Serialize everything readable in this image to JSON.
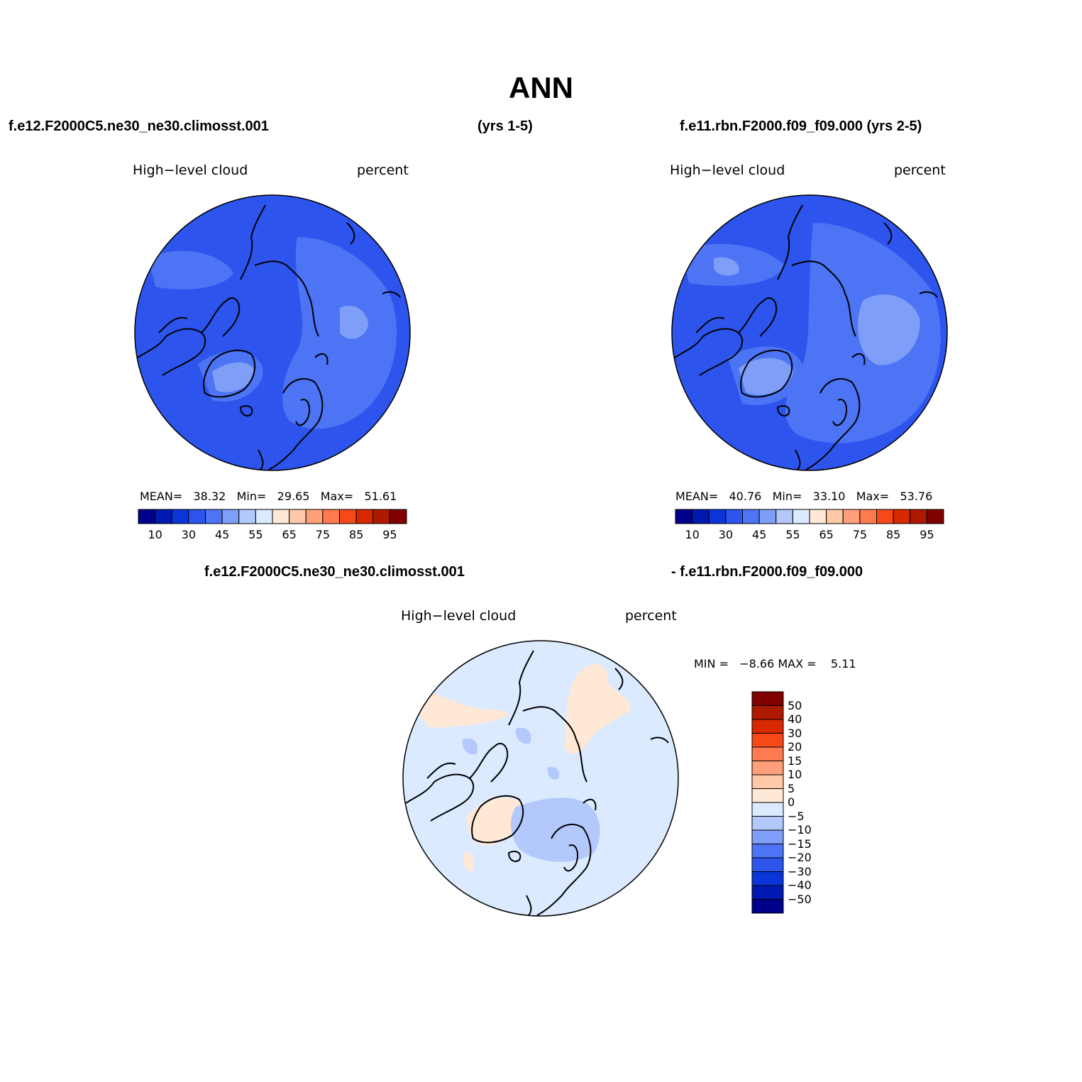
{
  "page_title": "ANN",
  "header": {
    "left_case": "f.e12.F2000C5.ne30_ne30.climosst.001",
    "left_years": "(yrs 1-5)",
    "right_case": "f.e11.rbn.F2000.f09_f09.000 (yrs 2-5)"
  },
  "panel_left": {
    "variable": "High−level cloud",
    "units": "percent",
    "stats": {
      "mean_label": "MEAN=",
      "mean": "38.32",
      "min_label": "Min=",
      "min": "29.65",
      "max_label": "Max=",
      "max": "51.61"
    }
  },
  "panel_right": {
    "variable": "High−level cloud",
    "units": "percent",
    "stats": {
      "mean_label": "MEAN=",
      "mean": "40.76",
      "min_label": "Min=",
      "min": "33.10",
      "max_label": "Max=",
      "max": "53.76"
    }
  },
  "panel_diff": {
    "case_a": "f.e12.F2000C5.ne30_ne30.climosst.001",
    "case_b": "- f.e11.rbn.F2000.f09_f09.000",
    "variable": "High−level cloud",
    "units": "percent",
    "stats": {
      "min_label": "MIN =",
      "min": "−8.66",
      "max_label": "MAX =",
      "max": "5.11"
    }
  },
  "colorbar_abs": {
    "colors": [
      "#00008c",
      "#0019b0",
      "#0a35d8",
      "#2d55ee",
      "#4c74f4",
      "#7f9ef8",
      "#b3c8fb",
      "#dceaff",
      "#ffe8d6",
      "#ffc8a8",
      "#ffa07a",
      "#ff7a4e",
      "#f54a18",
      "#d72800",
      "#ae1a00",
      "#800000"
    ],
    "labels": [
      "10",
      "30",
      "45",
      "55",
      "65",
      "75",
      "85",
      "95"
    ]
  },
  "colorbar_diff": {
    "colors_top_to_bottom": [
      "#800000",
      "#ae1a00",
      "#d72800",
      "#f54a18",
      "#ff7a4e",
      "#ffa07a",
      "#ffc8a8",
      "#ffe8d6",
      "#dceaff",
      "#b3c8fb",
      "#7f9ef8",
      "#4c74f4",
      "#2d55ee",
      "#0a35d8",
      "#0019b0",
      "#00008c"
    ],
    "labels": [
      "50",
      "40",
      "30",
      "20",
      "15",
      "10",
      "5",
      "0",
      "−5",
      "−10",
      "−15",
      "−20",
      "−30",
      "−40",
      "−50"
    ]
  },
  "map_colors": {
    "left_base": "#2d55ee",
    "left_patch": "#4c74f4",
    "left_light": "#7f9ef8",
    "right_base": "#2d55ee",
    "right_patch": "#4c74f4",
    "right_light": "#7f9ef8",
    "diff_base": "#dceaff",
    "diff_pos": "#ffe8d6",
    "diff_neg": "#b3c8fb"
  }
}
